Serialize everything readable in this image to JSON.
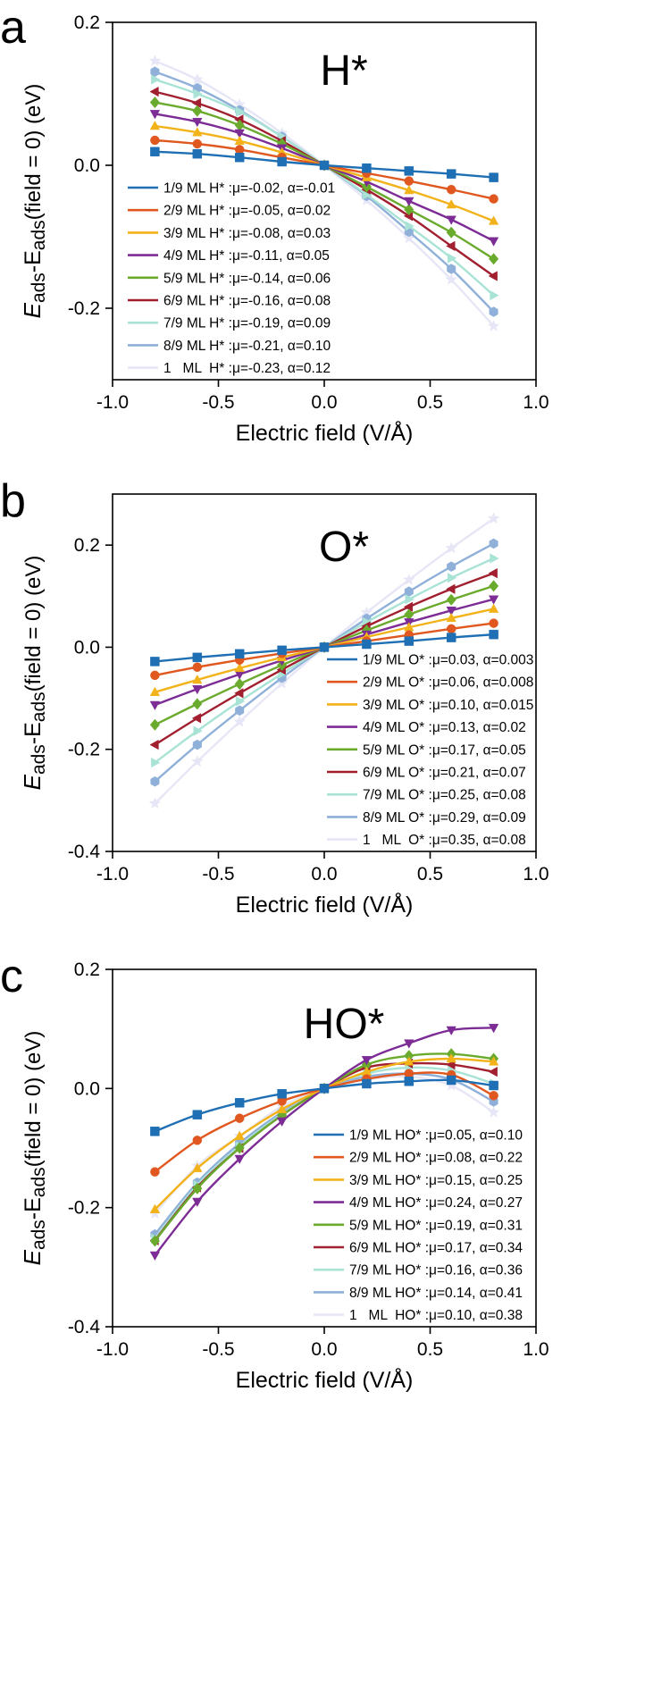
{
  "colors": [
    "#1f6fb4",
    "#e0581f",
    "#f2b21a",
    "#7d2c96",
    "#6aab2e",
    "#a11f2f",
    "#a8e3d6",
    "#8fb0d9",
    "#e6e6f6"
  ],
  "chart_data": [
    {
      "type": "line",
      "panel_label": "a",
      "species_label": "H*",
      "xlabel": "Electric field (V/Å)",
      "ylabel_main": "E",
      "ylabel_sub": "ads",
      "ylabel_mid": "-E",
      "ylabel_sub2": "ads",
      "ylabel_tail": "(field = 0) (eV)",
      "xlim": [
        -1.0,
        1.0
      ],
      "ylim": [
        -0.3,
        0.2
      ],
      "xticks": [
        "-1.0",
        "-0.5",
        "0.0",
        "0.5",
        "1.0"
      ],
      "xtick_values": [
        -1.0,
        -0.5,
        0.0,
        0.5,
        1.0
      ],
      "yticks": [
        "0.2",
        "0.0",
        "-0.2"
      ],
      "ytick_values": [
        0.2,
        0.0,
        -0.2
      ],
      "legend_position": "bottom-left",
      "x": [
        -0.8,
        -0.6,
        -0.4,
        -0.2,
        0.0,
        0.2,
        0.4,
        0.6,
        0.8
      ],
      "series": [
        {
          "name": "1/9 ML H* :μ=-0.02, α=-0.01",
          "marker": "square",
          "values": [
            0.019,
            0.016,
            0.011,
            0.005,
            0.0,
            -0.004,
            -0.008,
            -0.012,
            -0.017
          ]
        },
        {
          "name": "2/9 ML H* :μ=-0.05, α=0.02",
          "marker": "circle",
          "values": [
            0.035,
            0.03,
            0.022,
            0.011,
            0.0,
            -0.011,
            -0.022,
            -0.034,
            -0.047
          ]
        },
        {
          "name": "3/9 ML H* :μ=-0.08, α=0.03",
          "marker": "triangle-up",
          "values": [
            0.055,
            0.046,
            0.034,
            0.018,
            0.0,
            -0.017,
            -0.035,
            -0.055,
            -0.078
          ]
        },
        {
          "name": "4/9 ML H* :μ=-0.11, α=0.05",
          "marker": "triangle-down",
          "values": [
            0.072,
            0.061,
            0.045,
            0.024,
            0.0,
            -0.023,
            -0.05,
            -0.076,
            -0.106
          ]
        },
        {
          "name": "5/9 ML H* :μ=-0.14, α=0.06",
          "marker": "diamond",
          "values": [
            0.088,
            0.076,
            0.056,
            0.03,
            0.0,
            -0.03,
            -0.062,
            -0.094,
            -0.131
          ]
        },
        {
          "name": "6/9 ML H* :μ=-0.16, α=0.08",
          "marker": "triangle-left",
          "values": [
            0.103,
            0.087,
            0.064,
            0.034,
            0.0,
            -0.034,
            -0.071,
            -0.113,
            -0.155
          ]
        },
        {
          "name": "7/9 ML H* :μ=-0.19, α=0.09",
          "marker": "triangle-right",
          "values": [
            0.12,
            0.1,
            0.075,
            0.04,
            0.0,
            -0.041,
            -0.085,
            -0.13,
            -0.182
          ]
        },
        {
          "name": "8/9 ML H* :μ=-0.21, α=0.10",
          "marker": "hexagon",
          "values": [
            0.131,
            0.108,
            0.077,
            0.04,
            0.0,
            -0.043,
            -0.093,
            -0.145,
            -0.205
          ]
        },
        {
          "name": "1   ML  H* :μ=-0.23, α=0.12",
          "marker": "star",
          "values": [
            0.146,
            0.12,
            0.085,
            0.045,
            0.0,
            -0.049,
            -0.102,
            -0.16,
            -0.225
          ]
        }
      ]
    },
    {
      "type": "line",
      "panel_label": "b",
      "species_label": "O*",
      "xlabel": "Electric field (V/Å)",
      "ylabel_main": "E",
      "ylabel_sub": "ads",
      "ylabel_mid": "-E",
      "ylabel_sub2": "ads",
      "ylabel_tail": "(field = 0) (eV)",
      "xlim": [
        -1.0,
        1.0
      ],
      "ylim": [
        -0.4,
        0.3
      ],
      "xticks": [
        "-1.0",
        "-0.5",
        "0.0",
        "0.5",
        "1.0"
      ],
      "xtick_values": [
        -1.0,
        -0.5,
        0.0,
        0.5,
        1.0
      ],
      "yticks": [
        "0.2",
        "0.0",
        "-0.2",
        "-0.4"
      ],
      "ytick_values": [
        0.2,
        0.0,
        -0.2,
        -0.4
      ],
      "legend_position": "bottom-right",
      "x": [
        -0.8,
        -0.6,
        -0.4,
        -0.2,
        0.0,
        0.2,
        0.4,
        0.6,
        0.8
      ],
      "series": [
        {
          "name": "1/9 ML O* :μ=0.03, α=0.003",
          "marker": "square",
          "values": [
            -0.028,
            -0.02,
            -0.013,
            -0.006,
            0.0,
            0.006,
            0.012,
            0.019,
            0.025
          ]
        },
        {
          "name": "2/9 ML O* :μ=0.06, α=0.008",
          "marker": "circle",
          "values": [
            -0.055,
            -0.039,
            -0.025,
            -0.012,
            0.0,
            0.012,
            0.024,
            0.036,
            0.047
          ]
        },
        {
          "name": "3/9 ML O* :μ=0.10, α=0.015",
          "marker": "triangle-up",
          "values": [
            -0.088,
            -0.064,
            -0.041,
            -0.02,
            0.0,
            0.02,
            0.039,
            0.057,
            0.075
          ]
        },
        {
          "name": "4/9 ML O* :μ=0.13, α=0.02",
          "marker": "triangle-down",
          "values": [
            -0.113,
            -0.082,
            -0.053,
            -0.026,
            0.0,
            0.025,
            0.049,
            0.072,
            0.094
          ]
        },
        {
          "name": "5/9 ML O* :μ=0.17, α=0.05",
          "marker": "diamond",
          "values": [
            -0.152,
            -0.111,
            -0.072,
            -0.035,
            0.0,
            0.033,
            0.064,
            0.093,
            0.12
          ]
        },
        {
          "name": "6/9 ML O* :μ=0.21, α=0.07",
          "marker": "triangle-left",
          "values": [
            -0.191,
            -0.139,
            -0.09,
            -0.044,
            0.0,
            0.041,
            0.079,
            0.114,
            0.145
          ]
        },
        {
          "name": "7/9 ML O* :μ=0.25, α=0.08",
          "marker": "triangle-right",
          "values": [
            -0.226,
            -0.164,
            -0.106,
            -0.052,
            0.0,
            0.049,
            0.094,
            0.136,
            0.174
          ]
        },
        {
          "name": "8/9 ML O* :μ=0.29, α=0.09",
          "marker": "hexagon",
          "values": [
            -0.263,
            -0.191,
            -0.124,
            -0.06,
            0.0,
            0.056,
            0.109,
            0.158,
            0.203
          ]
        },
        {
          "name": "1   ML  O* :μ=0.35, α=0.08",
          "marker": "star",
          "values": [
            -0.306,
            -0.224,
            -0.146,
            -0.071,
            0.0,
            0.068,
            0.132,
            0.194,
            0.252
          ]
        }
      ]
    },
    {
      "type": "line",
      "panel_label": "c",
      "species_label": "HO*",
      "xlabel": "Electric field (V/Å)",
      "ylabel_main": "E",
      "ylabel_sub": "ads",
      "ylabel_mid": "-E",
      "ylabel_sub2": "ads",
      "ylabel_tail": "(field = 0) (eV)",
      "xlim": [
        -1.0,
        1.0
      ],
      "ylim": [
        -0.4,
        0.2
      ],
      "xticks": [
        "-1.0",
        "-0.5",
        "0.0",
        "0.5",
        "1.0"
      ],
      "xtick_values": [
        -1.0,
        -0.5,
        0.0,
        0.5,
        1.0
      ],
      "yticks": [
        "0.2",
        "0.0",
        "-0.2",
        "-0.4"
      ],
      "ytick_values": [
        0.2,
        0.0,
        -0.2,
        -0.4
      ],
      "legend_position": "bottom-right",
      "x": [
        -0.8,
        -0.6,
        -0.4,
        -0.2,
        0.0,
        0.2,
        0.4,
        0.6,
        0.8
      ],
      "series": [
        {
          "name": "1/9 ML HO* :μ=0.05, α=0.10",
          "marker": "square",
          "values": [
            -0.072,
            -0.044,
            -0.024,
            -0.009,
            0.0,
            0.008,
            0.012,
            0.014,
            0.005
          ]
        },
        {
          "name": "2/9 ML HO* :μ=0.08, α=0.22",
          "marker": "circle",
          "values": [
            -0.14,
            -0.087,
            -0.05,
            -0.021,
            0.0,
            0.016,
            0.025,
            0.023,
            -0.012
          ]
        },
        {
          "name": "3/9 ML HO* :μ=0.15, α=0.25",
          "marker": "triangle-up",
          "values": [
            -0.203,
            -0.134,
            -0.08,
            -0.035,
            0.0,
            0.028,
            0.045,
            0.05,
            0.045
          ]
        },
        {
          "name": "4/9 ML HO* :μ=0.24, α=0.27",
          "marker": "triangle-down",
          "values": [
            -0.28,
            -0.19,
            -0.118,
            -0.055,
            0.0,
            0.048,
            0.076,
            0.098,
            0.102
          ]
        },
        {
          "name": "5/9 ML HO* :μ=0.19, α=0.31",
          "marker": "diamond",
          "values": [
            -0.256,
            -0.168,
            -0.1,
            -0.045,
            0.0,
            0.04,
            0.055,
            0.058,
            0.05
          ]
        },
        {
          "name": "6/9 ML HO* :μ=0.17, α=0.34",
          "marker": "triangle-left",
          "values": [
            -0.255,
            -0.166,
            -0.1,
            -0.045,
            0.0,
            0.035,
            0.042,
            0.04,
            0.028
          ]
        },
        {
          "name": "7/9 ML HO* :μ=0.16, α=0.36",
          "marker": "triangle-right",
          "values": [
            -0.252,
            -0.162,
            -0.097,
            -0.043,
            0.0,
            0.025,
            0.035,
            0.03,
            0.008
          ]
        },
        {
          "name": "8/9 ML HO* :μ=0.14, α=0.41",
          "marker": "hexagon",
          "values": [
            -0.245,
            -0.158,
            -0.092,
            -0.04,
            0.0,
            0.02,
            0.025,
            0.015,
            -0.022
          ]
        },
        {
          "name": "1   ML  HO* :μ=0.10, α=0.38",
          "marker": "star",
          "values": [
            -0.21,
            -0.13,
            -0.08,
            -0.03,
            0.0,
            0.015,
            0.02,
            0.005,
            -0.04
          ]
        }
      ]
    }
  ]
}
